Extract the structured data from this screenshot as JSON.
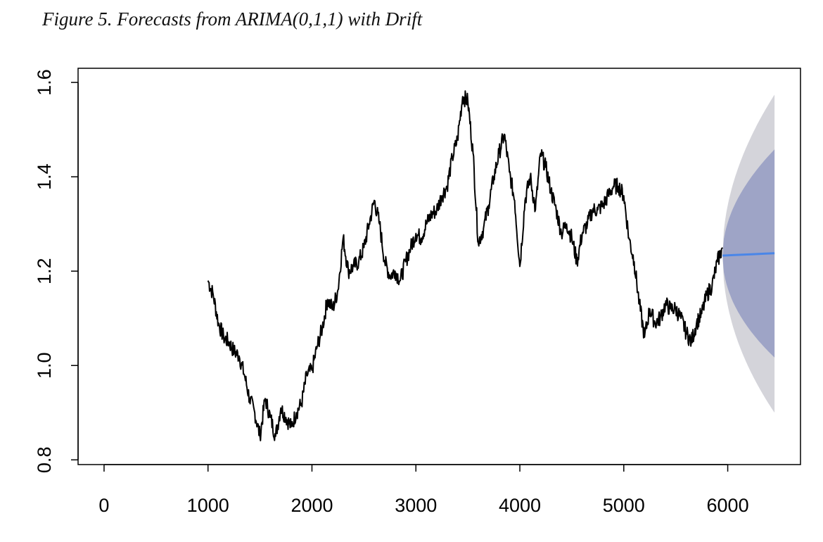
{
  "caption": "Figure 5. Forecasts from ARIMA(0,1,1) with Drift",
  "colors": {
    "series": "#000000",
    "forecast_line": "#4a86e8",
    "interval_80": "#9ea4c6",
    "interval_95": "#d4d4da",
    "axis": "#000000"
  },
  "chart_data": {
    "type": "line",
    "title": "",
    "xlabel": "",
    "ylabel": "",
    "xlim": [
      -250,
      6700
    ],
    "ylim": [
      0.79,
      1.63
    ],
    "grid": false,
    "x_ticks": [
      0,
      1000,
      2000,
      3000,
      4000,
      5000,
      6000
    ],
    "x_tick_labels": [
      "0",
      "1000",
      "2000",
      "3000",
      "4000",
      "5000",
      "6000"
    ],
    "y_ticks": [
      0.8,
      1.0,
      1.2,
      1.4,
      1.6
    ],
    "y_tick_labels": [
      "0.8",
      "1.0",
      "1.2",
      "1.4",
      "1.6"
    ],
    "series": [
      {
        "values_x": [
          1000,
          1050,
          1100,
          1150,
          1200,
          1250,
          1300,
          1350,
          1400,
          1450,
          1500,
          1550,
          1600,
          1650,
          1700,
          1750,
          1800,
          1850,
          1900,
          1950,
          2000,
          2050,
          2100,
          2150,
          2200,
          2250,
          2300,
          2350,
          2400,
          2450,
          2500,
          2550,
          2600,
          2650,
          2700,
          2750,
          2800,
          2850,
          2900,
          2950,
          3000,
          3050,
          3100,
          3150,
          3200,
          3250,
          3300,
          3350,
          3400,
          3450,
          3500,
          3550,
          3600,
          3650,
          3700,
          3750,
          3800,
          3850,
          3900,
          3950,
          4000,
          4050,
          4100,
          4150,
          4200,
          4250,
          4300,
          4350,
          4400,
          4450,
          4500,
          4550,
          4600,
          4650,
          4700,
          4750,
          4800,
          4850,
          4900,
          4950,
          5000,
          5050,
          5100,
          5150,
          5200,
          5250,
          5300,
          5350,
          5400,
          5450,
          5500,
          5550,
          5600,
          5650,
          5700,
          5750,
          5800,
          5850,
          5900,
          5950
        ],
        "values_y": [
          1.18,
          1.15,
          1.09,
          1.06,
          1.05,
          1.03,
          1.02,
          0.98,
          0.93,
          0.9,
          0.85,
          0.93,
          0.89,
          0.85,
          0.91,
          0.89,
          0.87,
          0.9,
          0.92,
          0.98,
          0.99,
          1.04,
          1.08,
          1.14,
          1.12,
          1.16,
          1.27,
          1.2,
          1.21,
          1.22,
          1.25,
          1.3,
          1.35,
          1.3,
          1.22,
          1.19,
          1.2,
          1.18,
          1.22,
          1.25,
          1.28,
          1.27,
          1.3,
          1.32,
          1.33,
          1.36,
          1.38,
          1.44,
          1.48,
          1.57,
          1.56,
          1.45,
          1.26,
          1.29,
          1.34,
          1.4,
          1.45,
          1.49,
          1.41,
          1.35,
          1.21,
          1.35,
          1.4,
          1.33,
          1.45,
          1.42,
          1.37,
          1.33,
          1.28,
          1.3,
          1.27,
          1.22,
          1.28,
          1.3,
          1.33,
          1.33,
          1.34,
          1.36,
          1.38,
          1.38,
          1.36,
          1.27,
          1.22,
          1.13,
          1.06,
          1.12,
          1.09,
          1.1,
          1.13,
          1.12,
          1.12,
          1.1,
          1.07,
          1.05,
          1.09,
          1.11,
          1.15,
          1.17,
          1.22,
          1.25
        ]
      }
    ],
    "forecast": {
      "x": [
        5950,
        6050,
        6150,
        6250,
        6350,
        6450
      ],
      "mean": [
        1.233,
        1.234,
        1.235,
        1.236,
        1.237,
        1.238
      ],
      "lo80": [
        1.233,
        1.115,
        1.087,
        1.058,
        1.037,
        1.017
      ],
      "hi80": [
        1.233,
        1.353,
        1.383,
        1.413,
        1.436,
        1.458
      ],
      "lo95": [
        1.233,
        1.053,
        1.009,
        0.964,
        0.93,
        0.9
      ],
      "hi95": [
        1.233,
        1.415,
        1.461,
        1.507,
        1.542,
        1.574
      ]
    }
  }
}
